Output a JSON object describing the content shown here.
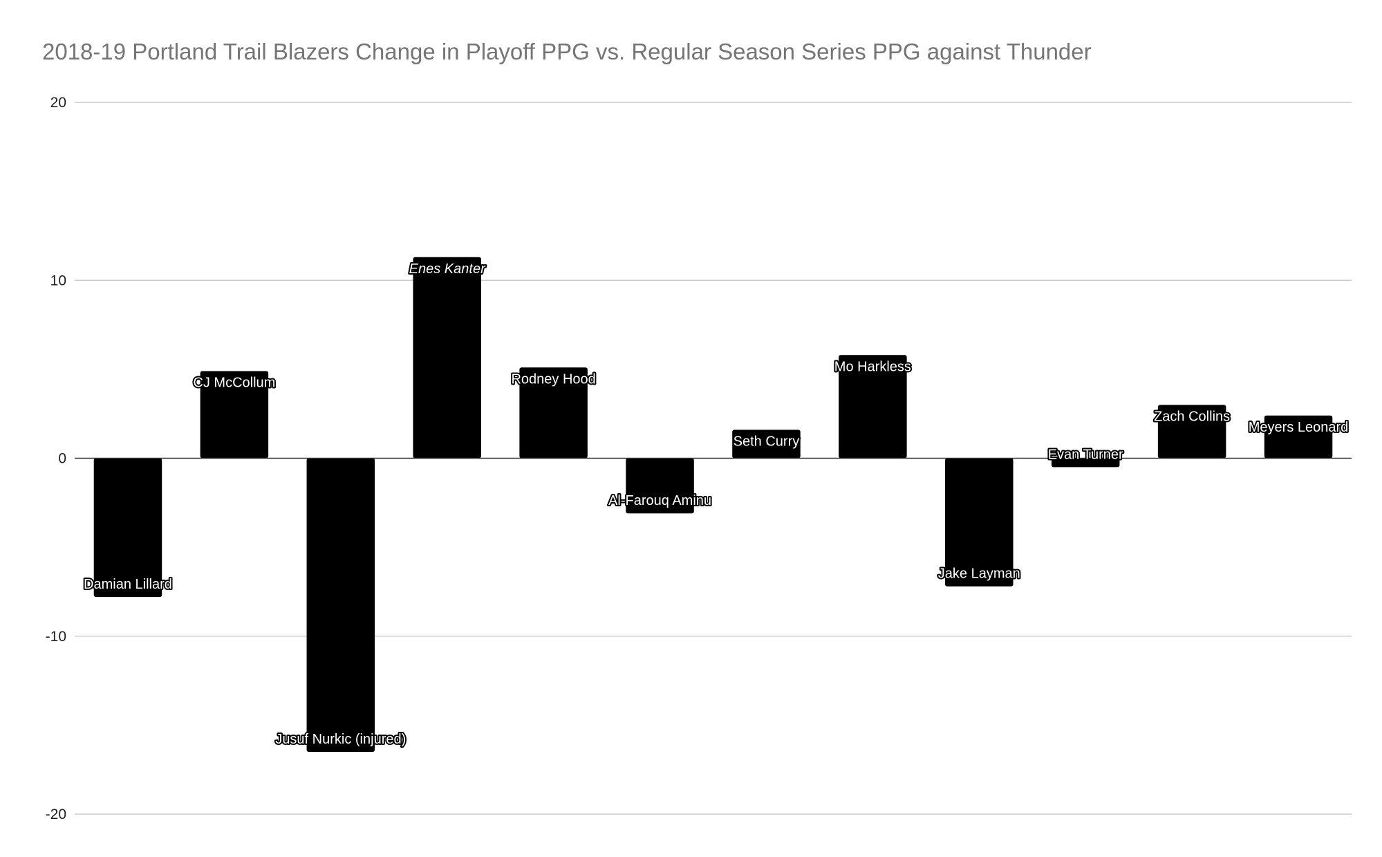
{
  "chart_data": {
    "type": "bar",
    "title": "2018-19 Portland Trail Blazers Change in Playoff PPG vs. Regular Season Series PPG against Thunder",
    "xlabel": "",
    "ylabel": "",
    "ylim": [
      -20,
      20
    ],
    "yticks": [
      "20",
      "10",
      "0",
      "-10",
      "-20"
    ],
    "ytick_values": [
      20,
      10,
      0,
      -10,
      -20
    ],
    "grid": true,
    "legend": "none",
    "bar_color": "#000000",
    "categories": [
      "Damian Lillard",
      "CJ McCollum",
      "Jusuf Nurkic (injured)",
      "Enes Kanter",
      "Rodney Hood",
      "Al-Farouq Aminu",
      "Seth Curry",
      "Mo Harkless",
      "Jake Layman",
      "Evan Turner",
      "Zach Collins",
      "Meyers Leonard"
    ],
    "values": [
      -7.8,
      4.9,
      -16.5,
      11.3,
      5.1,
      -3.1,
      1.6,
      5.8,
      -7.2,
      -0.5,
      3.0,
      2.4
    ],
    "italic_labels": [
      "Enes Kanter"
    ]
  }
}
